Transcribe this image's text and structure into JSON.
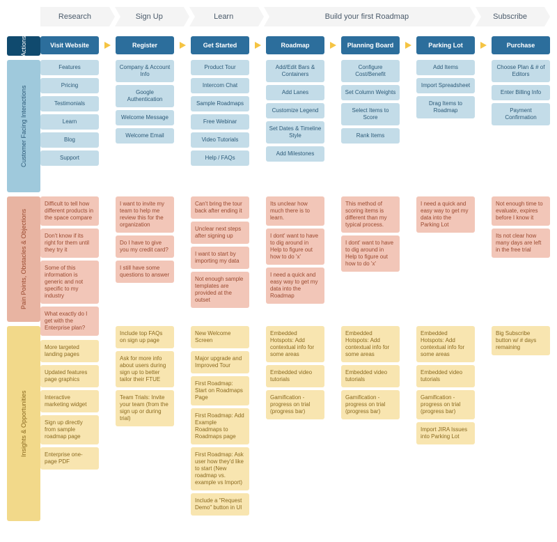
{
  "colors": {
    "action_bg": "#2c6e9c",
    "action_text": "#ffffff",
    "interaction_bg": "#c3dce8",
    "interaction_text": "#2c5a78",
    "painpoint_bg": "#f2c6b8",
    "painpoint_text": "#9a4a30",
    "insight_bg": "#f8e5b0",
    "insight_text": "#8a6a20",
    "arrow": "#f5c443",
    "phase_bar": "#f2f2f2",
    "row_label_actions": "#104a6e",
    "row_label_interactions": "#9fc9dc",
    "row_label_painpoints": "#e8b4a2",
    "row_label_insights": "#f2d98a"
  },
  "fontsize": {
    "phase": 11,
    "action": 9,
    "item": 8,
    "row_label": 9
  },
  "phases": [
    {
      "label": "Research",
      "span": 1
    },
    {
      "label": "Sign Up",
      "span": 1
    },
    {
      "label": "Learn",
      "span": 1
    },
    {
      "label": "Build your first Roadmap",
      "span": 3
    },
    {
      "label": "Subscribe",
      "span": 1
    }
  ],
  "row_labels": {
    "actions": "Actions",
    "interactions": "Customer Facing Interactions",
    "painpoints": "Pain Points, Obstacles & Objections",
    "insights": "Insights & Opportunities"
  },
  "columns": [
    {
      "action": "Visit Website",
      "interactions": [
        "Features",
        "Pricing",
        "Testimonials",
        "Learn",
        "Blog",
        "Support"
      ],
      "painpoints": [
        "Difficult to tell how different products in the space compare",
        "Don't know if its right for them until they try it",
        "Some of this information is generic and not specific to my industry",
        "What exactly do I get with the Enterprise plan?"
      ],
      "insights": [
        "More targeted landing pages",
        "Updated features page graphics",
        "Interactive marketing widget",
        "Sign up directly from sample roadmap page",
        "Enterprise one-page PDF"
      ]
    },
    {
      "action": "Register",
      "interactions": [
        "Company & Account Info",
        "Google Authentication",
        "Welcome Message",
        "Welcome Email"
      ],
      "painpoints": [
        "I want to invite my team to help me review this for the organization",
        "Do I have to give you my credit card?",
        "I still have some questions to answer"
      ],
      "insights": [
        "Include top FAQs on sign up page",
        "Ask for more info about users during sign up to better tailor their FTUE",
        "Team Trials: Invite your team (from the sign up or during trial)"
      ]
    },
    {
      "action": "Get Started",
      "interactions": [
        "Product Tour",
        "Intercom Chat",
        "Sample Roadmaps",
        "Free Webinar",
        "Video Tutorials",
        "Help / FAQs"
      ],
      "painpoints": [
        "Can't bring the tour back after ending it",
        "Unclear next steps after signing up",
        "I want to start by importing my data",
        "Not enough sample templates are provided at the outset"
      ],
      "insights": [
        "New Welcome Screen",
        "Major upgrade and Improved Tour",
        "First Roadmap: Start on Roadmaps Page",
        "First Roadmap: Add Example Roadmaps to Roadmaps page",
        "First Roadmap: Ask user how they'd like to start (New roadmap vs. example vs Import)",
        "Include a \"Request Demo\" button in UI"
      ]
    },
    {
      "action": "Roadmap",
      "interactions": [
        "Add/Edit Bars & Containers",
        "Add Lanes",
        "Customize Legend",
        "Set Dates & Timeline Style",
        "Add Milestones"
      ],
      "painpoints": [
        "Its unclear how much there is to learn.",
        "I dont' want to have to dig around in Help to figure out how to do 'x'",
        "I need a quick and easy way to get my data into the Roadmap"
      ],
      "insights": [
        "Embedded Hotspots: Add contextual info for some areas",
        "Embedded video tutorials",
        "Gamification - progress on trial (progress bar)"
      ]
    },
    {
      "action": "Planning Board",
      "interactions": [
        "Configure Cost/Benefit",
        "Set Column Weights",
        "Select Items to Score",
        "Rank Items"
      ],
      "painpoints": [
        "This method of scoring items is different than my typical process.",
        "I dont' want to have to dig around in Help to figure out how to do 'x'"
      ],
      "insights": [
        "Embedded Hotspots: Add contextual info for some areas",
        "Embedded video tutorials",
        "Gamification - progress on trial (progress bar)"
      ]
    },
    {
      "action": "Parking Lot",
      "interactions": [
        "Add Items",
        "Import Spreadsheet",
        "Drag Items to Roadmap"
      ],
      "painpoints": [
        "I need a quick and easy way to get my data into the Parking Lot"
      ],
      "insights": [
        "Embedded Hotspots: Add contextual info for some areas",
        "Embedded video tutorials",
        "Gamification - progress on trial (progress bar)",
        "Import JIRA Issues into Parking Lot"
      ]
    },
    {
      "action": "Purchase",
      "interactions": [
        "Choose Plan & # of Editors",
        "Enter Billing Info",
        "Payment Confirmation"
      ],
      "painpoints": [
        "Not enough time to evaluate, expires before I know it",
        "Its not clear how many days are left in the free trial"
      ],
      "insights": [
        "Big Subscribe button w/ # days remaining"
      ]
    }
  ],
  "section_heights": {
    "actions": 28,
    "interactions": 190,
    "painpoints": 180,
    "insights": 280
  }
}
